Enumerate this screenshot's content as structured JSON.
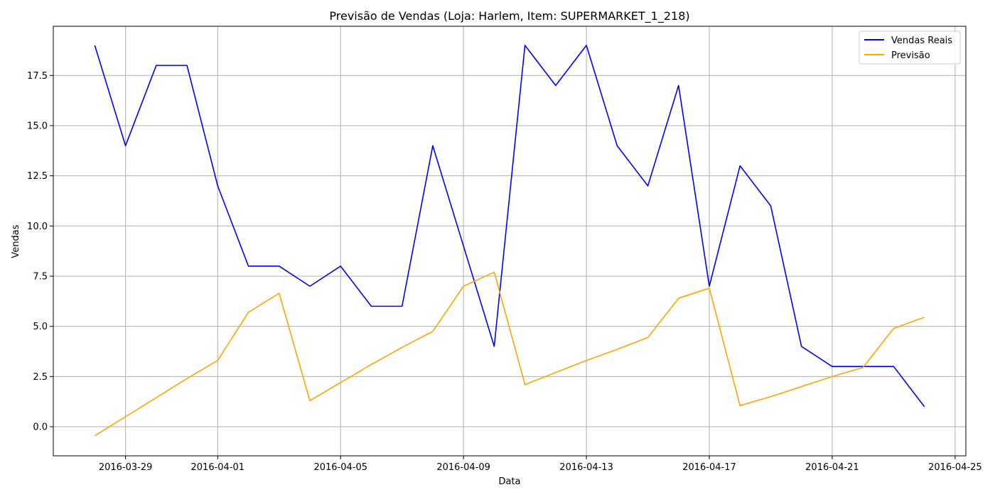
{
  "chart_data": {
    "type": "line",
    "title": "Previsão de Vendas (Loja: Harlem, Item: SUPERMARKET_1_218)",
    "xlabel": "Data",
    "ylabel": "Vendas",
    "x": [
      "2016-03-28",
      "2016-03-29",
      "2016-03-30",
      "2016-03-31",
      "2016-04-01",
      "2016-04-02",
      "2016-04-03",
      "2016-04-04",
      "2016-04-05",
      "2016-04-06",
      "2016-04-07",
      "2016-04-08",
      "2016-04-09",
      "2016-04-10",
      "2016-04-11",
      "2016-04-12",
      "2016-04-13",
      "2016-04-14",
      "2016-04-15",
      "2016-04-16",
      "2016-04-17",
      "2016-04-18",
      "2016-04-19",
      "2016-04-20",
      "2016-04-21",
      "2016-04-22",
      "2016-04-23",
      "2016-04-24"
    ],
    "series": [
      {
        "name": "Vendas Reais",
        "color": "#0000ff",
        "values": [
          19,
          14,
          18,
          18,
          12,
          8,
          8,
          7,
          8,
          6,
          6,
          14,
          9,
          4,
          19,
          17,
          19,
          14,
          12,
          17,
          7,
          13,
          11,
          4,
          3,
          3,
          3,
          1
        ]
      },
      {
        "name": "Previsão",
        "color": "#ffa500",
        "values": [
          -0.45,
          0.5,
          1.45,
          2.4,
          3.3,
          5.7,
          6.65,
          1.3,
          2.2,
          3.1,
          3.95,
          4.75,
          7.0,
          7.7,
          2.1,
          2.7,
          3.3,
          3.85,
          4.45,
          6.4,
          6.9,
          1.05,
          1.5,
          2.0,
          2.5,
          2.95,
          4.9,
          5.45
        ]
      }
    ],
    "x_ticks": [
      "2016-03-29",
      "2016-04-01",
      "2016-04-05",
      "2016-04-09",
      "2016-04-13",
      "2016-04-17",
      "2016-04-21",
      "2016-04-25"
    ],
    "y_ticks": [
      0.0,
      2.5,
      5.0,
      7.5,
      10.0,
      12.5,
      15.0,
      17.5
    ],
    "y_tick_labels": [
      "0.0",
      "2.5",
      "5.0",
      "7.5",
      "10.0",
      "12.5",
      "15.0",
      "17.5"
    ],
    "xlim": [
      "2016-03-26.65",
      "2016-04-25.35"
    ],
    "ylim": [
      -1.45,
      19.95
    ],
    "grid": true,
    "legend": "top-right"
  }
}
